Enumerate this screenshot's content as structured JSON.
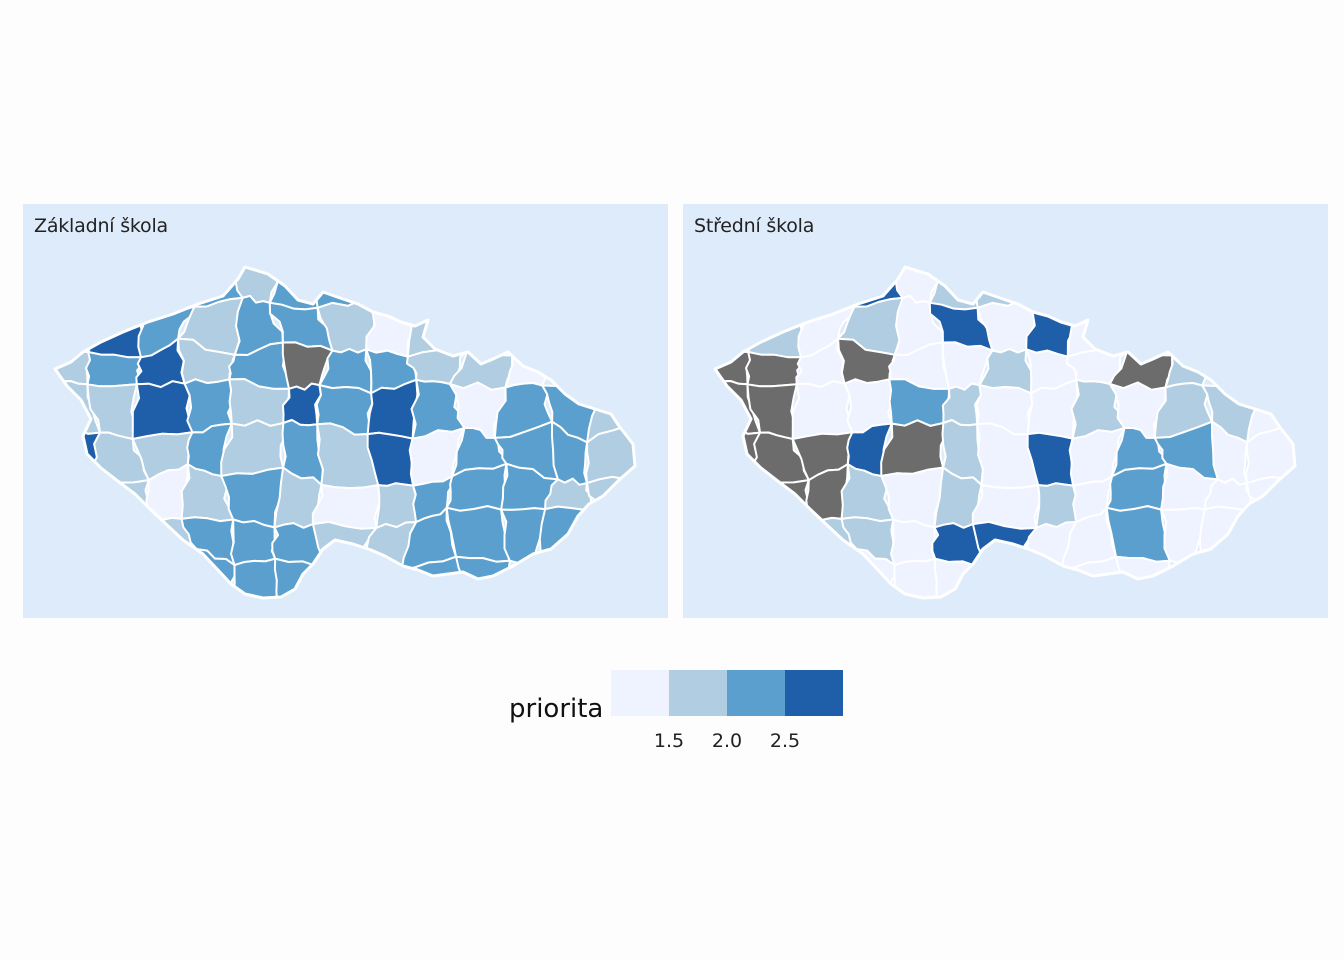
{
  "panels": [
    {
      "title": "Základní škola"
    },
    {
      "title": "Střední škola"
    }
  ],
  "legend": {
    "title": "priorita",
    "ticks": [
      "1.5",
      "2.0",
      "2.5"
    ],
    "bins": [
      {
        "color": "#eff3ff",
        "label": "< 1.5"
      },
      {
        "color": "#b0cde1",
        "label": "1.5–2.0"
      },
      {
        "color": "#5a9fcd",
        "label": "2.0–2.5"
      },
      {
        "color": "#1f5ea8",
        "label": "> 2.5"
      }
    ],
    "missing_color": "#6c6c6c"
  },
  "colors": {
    "panel_background": "#ddebfb",
    "region_border": "#ffffff"
  }
}
